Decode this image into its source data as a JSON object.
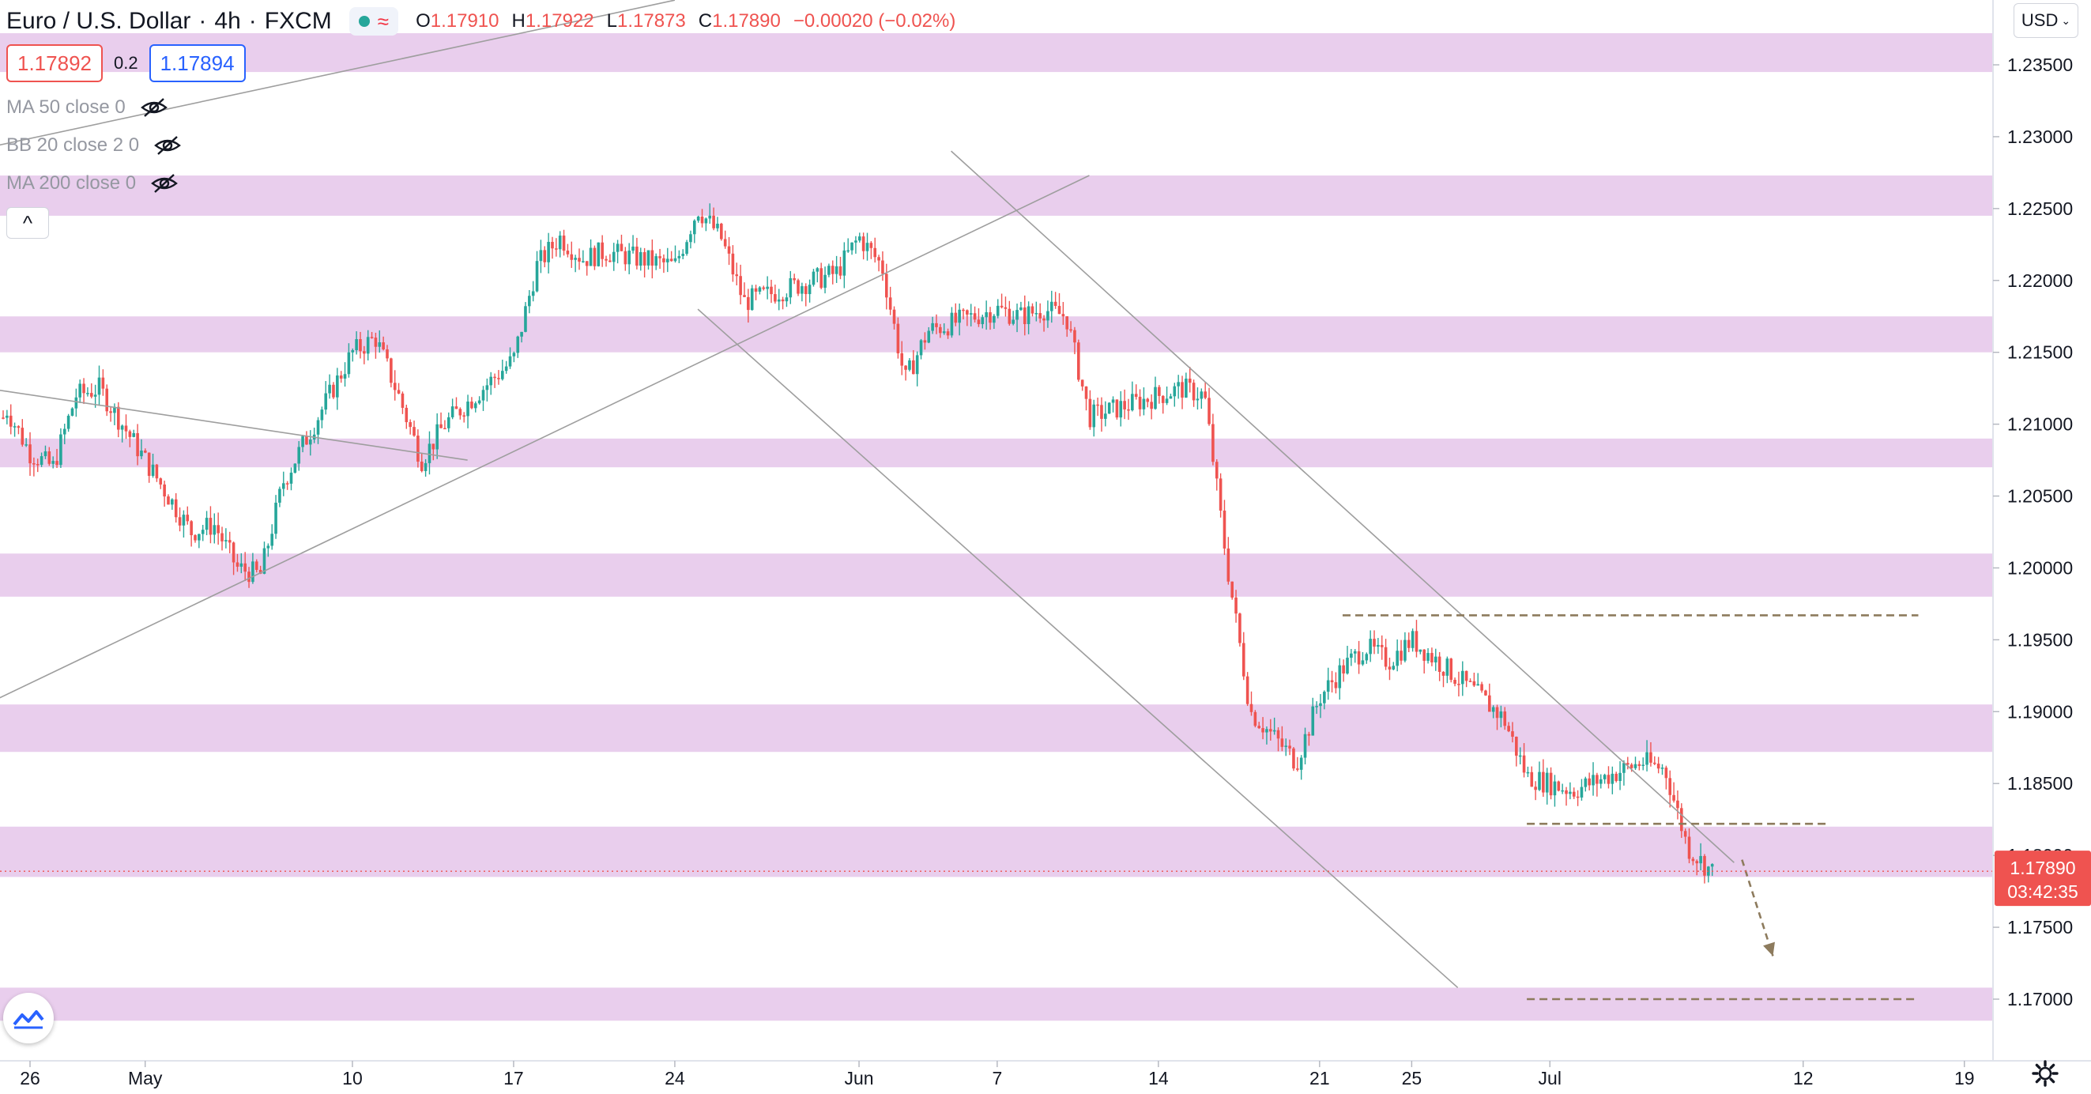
{
  "header": {
    "symbol": "Euro / U.S. Dollar",
    "interval": "4h",
    "exchange": "FXCM",
    "sep1": "·",
    "sep2": "·",
    "open_label": "O",
    "open": "1.17910",
    "high_label": "H",
    "high": "1.17922",
    "low_label": "L",
    "low": "1.17873",
    "close_label": "C",
    "close": "1.17890",
    "change": "−0.00020 (−0.02%)"
  },
  "quote": {
    "bid": "1.17892",
    "spread": "0.2",
    "ask": "1.17894"
  },
  "indicators": [
    {
      "label": "MA 50 close 0",
      "icon": "eye-hidden-icon"
    },
    {
      "label": "BB 20 close 2 0",
      "icon": "eye-hidden-icon"
    },
    {
      "label": "MA 200 close 0",
      "icon": "eye-hidden-icon"
    }
  ],
  "collapse_icon": "^",
  "currency_selector": "USD",
  "colors": {
    "up": "#26a69a",
    "down": "#ef5350",
    "zone": "#e1bee7",
    "trendline": "#9e9e9e",
    "projection": "#8d7b5d",
    "price_tag": "#ef5350"
  },
  "chart_data": {
    "type": "candlestick",
    "title": "Euro / U.S. Dollar",
    "interval": "4h",
    "y_axis": {
      "min": 1.1665,
      "max": 1.2378,
      "ticks": [
        "1.23500",
        "1.23000",
        "1.22500",
        "1.22000",
        "1.21500",
        "1.21000",
        "1.20500",
        "1.20000",
        "1.19500",
        "1.19000",
        "1.18500",
        "1.18000",
        "1.17500",
        "1.17000"
      ]
    },
    "x_axis": {
      "ticks": [
        "26",
        "May",
        "10",
        "17",
        "24",
        "Jun",
        "7",
        "14",
        "21",
        "25",
        "Jul",
        "12",
        "19"
      ]
    },
    "current_price": {
      "value": "1.17890",
      "countdown": "03:42:35"
    },
    "zones": [
      [
        1.2345,
        1.2372
      ],
      [
        1.2245,
        1.2273
      ],
      [
        1.215,
        1.2175
      ],
      [
        1.207,
        1.209
      ],
      [
        1.198,
        1.201
      ],
      [
        1.1872,
        1.1905
      ],
      [
        1.1785,
        1.182
      ],
      [
        1.1685,
        1.1708
      ]
    ],
    "price_path": [
      [
        "2021-04-23",
        1.2045
      ],
      [
        "2021-04-25",
        1.211
      ],
      [
        "2021-04-26",
        1.208
      ],
      [
        "2021-04-27",
        1.207
      ],
      [
        "2021-04-28",
        1.212
      ],
      [
        "2021-04-29",
        1.2125
      ],
      [
        "2021-04-30",
        1.21
      ],
      [
        "2021-05-03",
        1.2025
      ],
      [
        "2021-05-04",
        1.203
      ],
      [
        "2021-05-05",
        1.2
      ],
      [
        "2021-05-06",
        1.1995
      ],
      [
        "2021-05-07",
        1.206
      ],
      [
        "2021-05-10",
        1.215
      ],
      [
        "2021-05-11",
        1.216
      ],
      [
        "2021-05-12",
        1.212
      ],
      [
        "2021-05-13",
        1.2075
      ],
      [
        "2021-05-14",
        1.21
      ],
      [
        "2021-05-17",
        1.2145
      ],
      [
        "2021-05-18",
        1.221
      ],
      [
        "2021-05-19",
        1.223
      ],
      [
        "2021-05-20",
        1.2215
      ],
      [
        "2021-05-21",
        1.222
      ],
      [
        "2021-05-24",
        1.221
      ],
      [
        "2021-05-25",
        1.225
      ],
      [
        "2021-05-26",
        1.223
      ],
      [
        "2021-05-27",
        1.2185
      ],
      [
        "2021-05-28",
        1.219
      ],
      [
        "2021-05-31",
        1.2205
      ],
      [
        "2021-06-01",
        1.223
      ],
      [
        "2021-06-02",
        1.221
      ],
      [
        "2021-06-03",
        1.213
      ],
      [
        "2021-06-04",
        1.2165
      ],
      [
        "2021-06-07",
        1.218
      ],
      [
        "2021-06-08",
        1.2175
      ],
      [
        "2021-06-09",
        1.218
      ],
      [
        "2021-06-10",
        1.2175
      ],
      [
        "2021-06-11",
        1.2105
      ],
      [
        "2021-06-14",
        1.212
      ],
      [
        "2021-06-15",
        1.2125
      ],
      [
        "2021-06-16",
        1.212
      ],
      [
        "2021-06-17",
        1.2
      ],
      [
        "2021-06-18",
        1.19
      ],
      [
        "2021-06-20",
        1.1865
      ],
      [
        "2021-06-21",
        1.191
      ],
      [
        "2021-06-22",
        1.193
      ],
      [
        "2021-06-23",
        1.1945
      ],
      [
        "2021-06-24",
        1.1935
      ],
      [
        "2021-06-25",
        1.195
      ],
      [
        "2021-06-28",
        1.191
      ],
      [
        "2021-06-29",
        1.1895
      ],
      [
        "2021-06-30",
        1.1855
      ],
      [
        "2021-07-01",
        1.185
      ],
      [
        "2021-07-02",
        1.1845
      ],
      [
        "2021-07-05",
        1.1865
      ],
      [
        "2021-07-06",
        1.186
      ],
      [
        "2021-07-07",
        1.1805
      ],
      [
        "2021-07-08",
        1.1789
      ]
    ],
    "trend_lines": [
      {
        "from": [
          "2021-04-22",
          1.1889
        ],
        "to": [
          "2021-06-11",
          1.2273
        ]
      },
      {
        "from": [
          "2021-04-22",
          1.2285
        ],
        "to": [
          "2021-05-24",
          1.2395
        ]
      },
      {
        "from": [
          "2021-04-22",
          1.213
        ],
        "to": [
          "2021-05-15",
          1.2075
        ]
      },
      {
        "from": [
          "2021-05-25",
          1.218
        ],
        "to": [
          "2021-06-27",
          1.1708
        ]
      },
      {
        "from": [
          "2021-06-05",
          1.229
        ],
        "to": [
          "2021-07-09",
          1.1795
        ]
      }
    ],
    "horizontal_levels": [
      {
        "price": 1.1967,
        "from": "2021-06-22",
        "to": "2021-07-17"
      },
      {
        "price": 1.1822,
        "from": "2021-06-30",
        "to": "2021-07-13"
      },
      {
        "price": 1.17,
        "from": "2021-06-30",
        "to": "2021-07-17"
      }
    ],
    "projection_arrow": {
      "from": [
        "2021-07-09",
        1.1797
      ],
      "to": [
        "2021-07-10",
        1.173
      ]
    }
  }
}
